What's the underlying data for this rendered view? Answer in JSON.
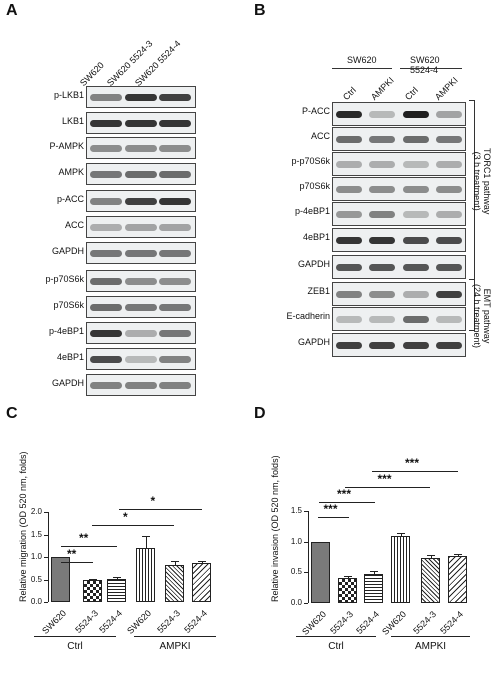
{
  "panels": {
    "a": {
      "letter": "A",
      "lanes": [
        "SW620",
        "SW620 5524-3",
        "SW620 5524-4"
      ],
      "rows": [
        "p-LKB1",
        "LKB1",
        "P-AMPK",
        "AMPK",
        "p-ACC",
        "ACC",
        "GAPDH",
        "p-p70S6k",
        "p70S6k",
        "p-4eBP1",
        "4eBP1",
        "GAPDH"
      ]
    },
    "b": {
      "letter": "B",
      "groups": [
        "SW620",
        "SW620 5524-4"
      ],
      "lanes": [
        "Ctrl",
        "AMPKI",
        "Ctrl",
        "AMPKI"
      ],
      "rows": [
        "P-ACC",
        "ACC",
        "p-p70S6k",
        "p70S6k",
        "p-4eBP1",
        "4eBP1",
        "GAPDH",
        "ZEB1",
        "E-cadherin",
        "GAPDH"
      ],
      "side1": "TORC1 pathway\n(3 h treatment)",
      "side2": "EMT pathway\n(24 h treatment)"
    },
    "c": {
      "letter": "C",
      "ylabel": "Relative migration (OD 520 nm, folds)",
      "ticks": [
        "0.0",
        "0.5",
        "1.0",
        "1.5",
        "2.0"
      ],
      "xlabels": [
        "SW620",
        "5524-3",
        "5524-4",
        "SW620",
        "5524-3",
        "5524-4"
      ],
      "groups": [
        "Ctrl",
        "AMPKI"
      ],
      "stars": [
        "**",
        "**",
        "*",
        "*"
      ]
    },
    "d": {
      "letter": "D",
      "ylabel": "Relative invasion (OD 520 nm, folds)",
      "ticks": [
        "0.0",
        "0.5",
        "1.0",
        "1.5"
      ],
      "xlabels": [
        "SW620",
        "5524-3",
        "5524-4",
        "SW620",
        "5524-3",
        "5524-4"
      ],
      "groups": [
        "Ctrl",
        "AMPKI"
      ],
      "stars": [
        "***",
        "***",
        "***",
        "***"
      ]
    }
  },
  "chart_data": [
    {
      "type": "bar",
      "ylabel": "Relative migration (OD 520 nm, folds)",
      "ylim": [
        0,
        2.0
      ],
      "categories": [
        "SW620",
        "5524-3",
        "5524-4",
        "SW620",
        "5524-3",
        "5524-4"
      ],
      "groups": [
        "Ctrl",
        "AMPKI"
      ],
      "values": [
        1.0,
        0.48,
        0.51,
        1.2,
        0.82,
        0.86
      ],
      "errors": [
        0.0,
        0.03,
        0.04,
        0.27,
        0.1,
        0.06
      ]
    },
    {
      "type": "bar",
      "ylabel": "Relative invasion (OD 520 nm, folds)",
      "ylim": [
        0,
        1.5
      ],
      "categories": [
        "SW620",
        "5524-3",
        "5524-4",
        "SW620",
        "5524-3",
        "5524-4"
      ],
      "groups": [
        "Ctrl",
        "AMPKI"
      ],
      "values": [
        1.0,
        0.4,
        0.47,
        1.1,
        0.73,
        0.76
      ],
      "errors": [
        0.0,
        0.04,
        0.05,
        0.04,
        0.05,
        0.04
      ]
    }
  ]
}
